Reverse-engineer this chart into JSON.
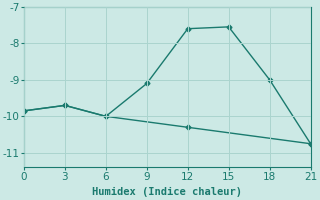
{
  "line1_x": [
    0,
    3,
    6,
    9,
    12,
    15,
    18,
    21
  ],
  "line1_y": [
    -9.85,
    -9.7,
    -10.0,
    -9.1,
    -7.6,
    -7.55,
    -9.0,
    -10.75
  ],
  "line2_x": [
    0,
    3,
    6,
    12,
    21
  ],
  "line2_y": [
    -9.85,
    -9.7,
    -10.0,
    -10.3,
    -10.75
  ],
  "color": "#1a7a6e",
  "bg_color": "#cce9e5",
  "grid_color": "#aad4ce",
  "xlabel": "Humidex (Indice chaleur)",
  "xlim": [
    0,
    21
  ],
  "ylim": [
    -11.4,
    -7.0
  ],
  "xticks": [
    0,
    3,
    6,
    9,
    12,
    15,
    18,
    21
  ],
  "yticks": [
    -11,
    -10,
    -9,
    -8,
    -7
  ],
  "marker": "D",
  "marker_size": 2.5,
  "line_width": 1.0
}
